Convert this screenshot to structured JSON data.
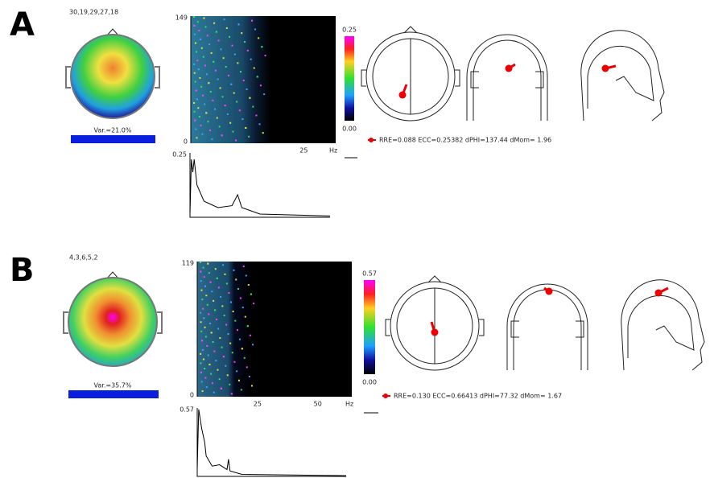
{
  "panels": [
    {
      "label": "A",
      "components": "30,19,29,27,18",
      "variance": "Var.=21.0%",
      "spectrogram": {
        "top": "149",
        "bottom": "0",
        "xticks": [
          "25"
        ],
        "unit": "Hz"
      },
      "colorbar": {
        "max": "0.25",
        "min": "0.00"
      },
      "spectrum": {
        "top": "0.25"
      },
      "dipole": "RRE=0.088 ECC=0.25382 dPHI=137.44 dMom= 1.96"
    },
    {
      "label": "B",
      "components": "4,3,6,5,2",
      "variance": "Var.=35.7%",
      "spectrogram": {
        "top": "119",
        "bottom": "0",
        "xticks": [
          "25",
          "50"
        ],
        "unit": "Hz"
      },
      "colorbar": {
        "max": "0.57",
        "min": "0.00"
      },
      "spectrum": {
        "top": "0.57"
      },
      "dipole": "RRE=0.130 ECC=0.66413 dPHI=77.32 dMom= 1.67"
    }
  ]
}
